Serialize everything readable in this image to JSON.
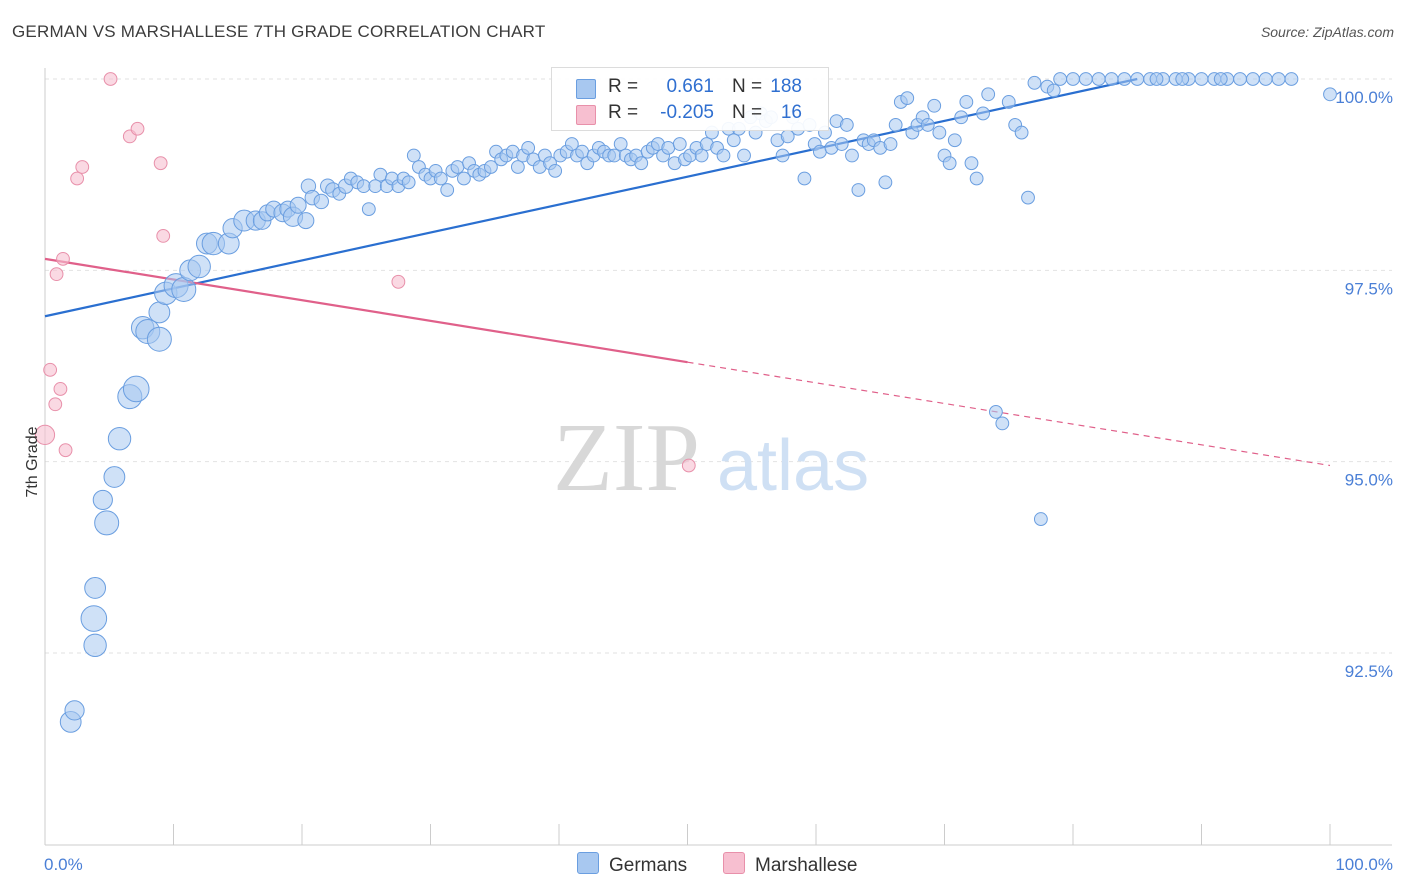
{
  "title": "GERMAN VS MARSHALLESE 7TH GRADE CORRELATION CHART",
  "source": "Source: ZipAtlas.com",
  "watermark": {
    "zip": "ZIP",
    "atlas": "atlas"
  },
  "colors": {
    "german_fill": "#a8c8f0",
    "german_stroke": "#6a9ee0",
    "german_line": "#2a6fd0",
    "marsh_fill": "#f7bfd0",
    "marsh_stroke": "#e890aa",
    "marsh_line": "#e0608a",
    "tick_blue": "#4a7fd6",
    "grid": "#e2e2e2"
  },
  "legend": {
    "rows": [
      {
        "r_label": "R =",
        "r_value": "0.661",
        "n_label": "N =",
        "n_value": "188"
      },
      {
        "r_label": "R =",
        "r_value": "-0.205",
        "n_label": "N =",
        "n_value": "16"
      }
    ]
  },
  "bottom_legend": {
    "germans": "Germans",
    "marshallese": "Marshallese"
  },
  "chart_data": {
    "type": "scatter",
    "title": "GERMAN VS MARSHALLESE 7TH GRADE CORRELATION CHART",
    "xlabel": "",
    "ylabel": "7th Grade",
    "xlim": [
      0,
      100
    ],
    "ylim": [
      90.3,
      100.4
    ],
    "x_tick_labels": [
      "0.0%",
      "100.0%"
    ],
    "y_ticks": [
      {
        "value": 100.0,
        "label": "100.0%"
      },
      {
        "value": 97.5,
        "label": "97.5%"
      },
      {
        "value": 95.0,
        "label": "95.0%"
      },
      {
        "value": 92.5,
        "label": "92.5%"
      }
    ],
    "grid": true,
    "legend_position": "top-center",
    "series": [
      {
        "name": "Germans",
        "color": "#a8c8f0",
        "trend": {
          "x": [
            0,
            85
          ],
          "y": [
            96.9,
            100.0
          ]
        },
        "points": [
          [
            2,
            91.6,
            1.3
          ],
          [
            2.3,
            91.75,
            1.2
          ],
          [
            3.8,
            92.95,
            1.6
          ],
          [
            3.9,
            93.35,
            1.3
          ],
          [
            3.9,
            92.6,
            1.4
          ],
          [
            4.5,
            94.5,
            1.2
          ],
          [
            4.8,
            94.2,
            1.5
          ],
          [
            5.4,
            94.8,
            1.3
          ],
          [
            5.8,
            95.3,
            1.4
          ],
          [
            6.6,
            95.85,
            1.5
          ],
          [
            7.1,
            95.95,
            1.6
          ],
          [
            7.6,
            96.75,
            1.4
          ],
          [
            8,
            96.7,
            1.5
          ],
          [
            8.9,
            96.6,
            1.5
          ],
          [
            8.9,
            96.95,
            1.3
          ],
          [
            9.4,
            97.2,
            1.4
          ],
          [
            10.2,
            97.3,
            1.5
          ],
          [
            10.8,
            97.25,
            1.5
          ],
          [
            11.3,
            97.5,
            1.3
          ],
          [
            12.0,
            97.55,
            1.4
          ],
          [
            12.6,
            97.85,
            1.3
          ],
          [
            13.1,
            97.85,
            1.4
          ],
          [
            14.3,
            97.85,
            1.3
          ],
          [
            14.6,
            98.05,
            1.2
          ],
          [
            15.5,
            98.15,
            1.3
          ],
          [
            16.4,
            98.15,
            1.2
          ],
          [
            16.9,
            98.15,
            1.1
          ],
          [
            17.3,
            98.25,
            1.0
          ],
          [
            17.8,
            98.3,
            1.0
          ],
          [
            18.5,
            98.25,
            1.1
          ],
          [
            18.9,
            98.3,
            1.0
          ],
          [
            19.3,
            98.2,
            1.2
          ],
          [
            19.7,
            98.35,
            1.0
          ],
          [
            20.3,
            98.15,
            1.0
          ],
          [
            20.5,
            98.6,
            0.9
          ],
          [
            20.8,
            98.45,
            0.9
          ],
          [
            21.5,
            98.4,
            0.9
          ],
          [
            22.0,
            98.6,
            0.9
          ],
          [
            22.4,
            98.55,
            0.9
          ],
          [
            22.9,
            98.5,
            0.8
          ],
          [
            23.4,
            98.6,
            0.9
          ],
          [
            23.8,
            98.7,
            0.8
          ],
          [
            24.3,
            98.65,
            0.8
          ],
          [
            24.8,
            98.6,
            0.8
          ],
          [
            25.2,
            98.3,
            0.8
          ],
          [
            25.7,
            98.6,
            0.8
          ],
          [
            26.1,
            98.75,
            0.8
          ],
          [
            26.6,
            98.6,
            0.8
          ],
          [
            27.0,
            98.7,
            0.8
          ],
          [
            27.5,
            98.6,
            0.8
          ],
          [
            27.9,
            98.7,
            0.8
          ],
          [
            28.3,
            98.65,
            0.8
          ],
          [
            28.7,
            99.0,
            0.8
          ],
          [
            29.1,
            98.85,
            0.8
          ],
          [
            29.6,
            98.75,
            0.8
          ],
          [
            30.0,
            98.7,
            0.8
          ],
          [
            30.4,
            98.8,
            0.8
          ],
          [
            30.8,
            98.7,
            0.8
          ],
          [
            31.3,
            98.55,
            0.8
          ],
          [
            31.7,
            98.8,
            0.8
          ],
          [
            32.1,
            98.85,
            0.8
          ],
          [
            32.6,
            98.7,
            0.8
          ],
          [
            33.0,
            98.9,
            0.8
          ],
          [
            33.4,
            98.8,
            0.8
          ],
          [
            33.8,
            98.75,
            0.8
          ],
          [
            34.2,
            98.8,
            0.8
          ],
          [
            34.7,
            98.85,
            0.8
          ],
          [
            35.1,
            99.05,
            0.8
          ],
          [
            35.5,
            98.95,
            0.8
          ],
          [
            35.9,
            99.0,
            0.8
          ],
          [
            36.4,
            99.05,
            0.8
          ],
          [
            36.8,
            98.85,
            0.8
          ],
          [
            37.2,
            99.0,
            0.8
          ],
          [
            37.6,
            99.1,
            0.8
          ],
          [
            38.0,
            98.95,
            0.8
          ],
          [
            38.5,
            98.85,
            0.8
          ],
          [
            38.9,
            99.0,
            0.8
          ],
          [
            39.3,
            98.9,
            0.8
          ],
          [
            39.7,
            98.8,
            0.8
          ],
          [
            40.1,
            99.0,
            0.8
          ],
          [
            40.6,
            99.05,
            0.8
          ],
          [
            41.0,
            99.15,
            0.8
          ],
          [
            41.4,
            99.0,
            0.8
          ],
          [
            41.8,
            99.05,
            0.8
          ],
          [
            42.2,
            98.9,
            0.8
          ],
          [
            42.7,
            99.0,
            0.8
          ],
          [
            43.1,
            99.1,
            0.8
          ],
          [
            43.5,
            99.05,
            0.8
          ],
          [
            43.9,
            99.0,
            0.8
          ],
          [
            44.3,
            99.0,
            0.8
          ],
          [
            44.8,
            99.15,
            0.8
          ],
          [
            45.2,
            99.0,
            0.8
          ],
          [
            45.6,
            98.95,
            0.8
          ],
          [
            46.0,
            99.0,
            0.8
          ],
          [
            46.4,
            98.9,
            0.8
          ],
          [
            46.9,
            99.05,
            0.8
          ],
          [
            47.3,
            99.1,
            0.8
          ],
          [
            47.7,
            99.15,
            0.8
          ],
          [
            48.1,
            99.0,
            0.8
          ],
          [
            48.5,
            99.1,
            0.8
          ],
          [
            49.0,
            98.9,
            0.8
          ],
          [
            49.4,
            99.15,
            0.8
          ],
          [
            49.8,
            98.95,
            0.8
          ],
          [
            50.2,
            99.0,
            0.8
          ],
          [
            50.7,
            99.1,
            0.8
          ],
          [
            51.1,
            99.0,
            0.8
          ],
          [
            51.5,
            99.15,
            0.8
          ],
          [
            51.9,
            99.3,
            0.8
          ],
          [
            52.3,
            99.1,
            0.8
          ],
          [
            52.8,
            99.0,
            0.8
          ],
          [
            53.2,
            99.35,
            0.8
          ],
          [
            53.6,
            99.2,
            0.8
          ],
          [
            54.0,
            99.35,
            0.8
          ],
          [
            54.4,
            99.0,
            0.8
          ],
          [
            54.9,
            99.5,
            0.8
          ],
          [
            55.3,
            99.3,
            0.8
          ],
          [
            55.7,
            99.55,
            0.8
          ],
          [
            56.1,
            99.45,
            0.8
          ],
          [
            56.5,
            99.5,
            0.8
          ],
          [
            57.0,
            99.2,
            0.8
          ],
          [
            57.4,
            99.0,
            0.8
          ],
          [
            57.8,
            99.25,
            0.8
          ],
          [
            58.2,
            99.5,
            0.8
          ],
          [
            58.6,
            99.35,
            0.8
          ],
          [
            59.1,
            98.7,
            0.8
          ],
          [
            59.5,
            99.4,
            0.8
          ],
          [
            59.9,
            99.15,
            0.8
          ],
          [
            60.3,
            99.05,
            0.8
          ],
          [
            60.7,
            99.3,
            0.8
          ],
          [
            61.2,
            99.1,
            0.8
          ],
          [
            61.6,
            99.45,
            0.8
          ],
          [
            62.0,
            99.15,
            0.8
          ],
          [
            62.4,
            99.4,
            0.8
          ],
          [
            62.8,
            99.0,
            0.8
          ],
          [
            63.3,
            98.55,
            0.8
          ],
          [
            63.7,
            99.2,
            0.8
          ],
          [
            64.1,
            99.15,
            0.8
          ],
          [
            64.5,
            99.2,
            0.8
          ],
          [
            65.0,
            99.1,
            0.8
          ],
          [
            65.4,
            98.65,
            0.8
          ],
          [
            65.8,
            99.15,
            0.8
          ],
          [
            66.2,
            99.4,
            0.8
          ],
          [
            66.6,
            99.7,
            0.8
          ],
          [
            67.1,
            99.75,
            0.8
          ],
          [
            67.5,
            99.3,
            0.8
          ],
          [
            67.9,
            99.4,
            0.8
          ],
          [
            68.3,
            99.5,
            0.8
          ],
          [
            68.7,
            99.4,
            0.8
          ],
          [
            69.2,
            99.65,
            0.8
          ],
          [
            69.6,
            99.3,
            0.8
          ],
          [
            70.0,
            99.0,
            0.8
          ],
          [
            70.4,
            98.9,
            0.8
          ],
          [
            70.8,
            99.2,
            0.8
          ],
          [
            71.3,
            99.5,
            0.8
          ],
          [
            71.7,
            99.7,
            0.8
          ],
          [
            72.1,
            98.9,
            0.8
          ],
          [
            72.5,
            98.7,
            0.8
          ],
          [
            73.0,
            99.55,
            0.8
          ],
          [
            73.4,
            99.8,
            0.8
          ],
          [
            74.0,
            95.65,
            0.8
          ],
          [
            74.5,
            95.5,
            0.8
          ],
          [
            75.0,
            99.7,
            0.8
          ],
          [
            75.5,
            99.4,
            0.8
          ],
          [
            76.0,
            99.3,
            0.8
          ],
          [
            76.5,
            98.45,
            0.8
          ],
          [
            77.0,
            99.95,
            0.8
          ],
          [
            77.5,
            94.25,
            0.8
          ],
          [
            78.0,
            99.9,
            0.8
          ],
          [
            78.5,
            99.85,
            0.8
          ],
          [
            79.0,
            100.0,
            0.8
          ],
          [
            80.0,
            100.0,
            0.8
          ],
          [
            81.0,
            100.0,
            0.8
          ],
          [
            82.0,
            100.0,
            0.8
          ],
          [
            83.0,
            100.0,
            0.8
          ],
          [
            84.0,
            100.0,
            0.8
          ],
          [
            85.0,
            100.0,
            0.8
          ],
          [
            86.0,
            100.0,
            0.8
          ],
          [
            87.0,
            100.0,
            0.8
          ],
          [
            88.0,
            100.0,
            0.8
          ],
          [
            89.0,
            100.0,
            0.8
          ],
          [
            90.0,
            100.0,
            0.8
          ],
          [
            91.0,
            100.0,
            0.8
          ],
          [
            92.0,
            100.0,
            0.8
          ],
          [
            93.0,
            100.0,
            0.8
          ],
          [
            94.0,
            100.0,
            0.8
          ],
          [
            95.0,
            100.0,
            0.8
          ],
          [
            96.0,
            100.0,
            0.8
          ],
          [
            97.0,
            100.0,
            0.8
          ],
          [
            100.0,
            99.8,
            0.8
          ],
          [
            86.5,
            100.0,
            0.8
          ],
          [
            88.5,
            100.0,
            0.8
          ],
          [
            91.5,
            100.0,
            0.8
          ]
        ]
      },
      {
        "name": "Marshallese",
        "color": "#f7bfd0",
        "trend": {
          "x": [
            0,
            50
          ],
          "y": [
            97.65,
            96.3
          ],
          "dashed_to": {
            "x": 100,
            "y": 94.95
          }
        },
        "points": [
          [
            0,
            95.35,
            1.2
          ],
          [
            0.4,
            96.2,
            0.8
          ],
          [
            0.8,
            95.75,
            0.8
          ],
          [
            1.2,
            95.95,
            0.8
          ],
          [
            1.6,
            95.15,
            0.8
          ],
          [
            0.9,
            97.45,
            0.8
          ],
          [
            1.4,
            97.65,
            0.8
          ],
          [
            2.5,
            98.7,
            0.8
          ],
          [
            2.9,
            98.85,
            0.8
          ],
          [
            5.1,
            100.0,
            0.8
          ],
          [
            6.6,
            99.25,
            0.8
          ],
          [
            7.2,
            99.35,
            0.8
          ],
          [
            9.0,
            98.9,
            0.8
          ],
          [
            9.2,
            97.95,
            0.8
          ],
          [
            27.5,
            97.35,
            0.8
          ],
          [
            50.1,
            94.95,
            0.8
          ]
        ]
      }
    ]
  }
}
